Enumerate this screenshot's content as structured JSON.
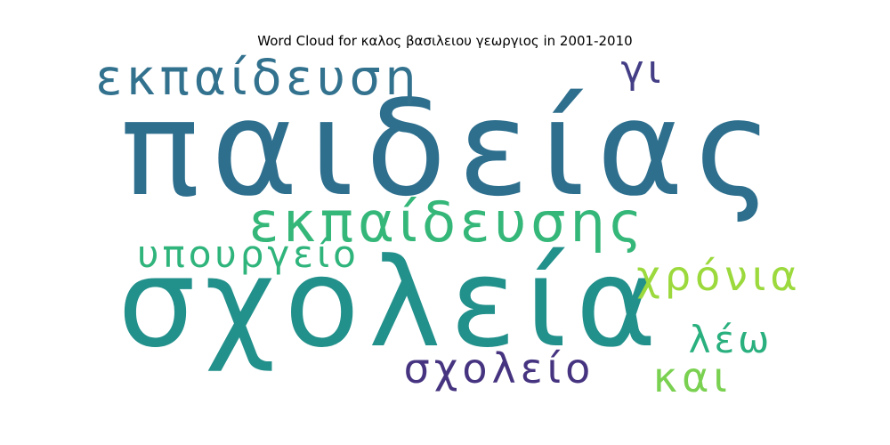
{
  "chart_data": {
    "type": "wordcloud",
    "title": "Word Cloud for καλος βασιλειου γεωργιος in 2001-2010",
    "words": [
      {
        "text": "παιδείας",
        "weight": 1.0,
        "color": "#2e6f8e"
      },
      {
        "text": "σχολεία",
        "weight": 0.93,
        "color": "#22908b"
      },
      {
        "text": "εκπαίδευσης",
        "weight": 0.42,
        "color": "#35b779"
      },
      {
        "text": "εκπαίδευση",
        "weight": 0.39,
        "color": "#33728e"
      },
      {
        "text": "υπουργείο",
        "weight": 0.3,
        "color": "#2fb47c"
      },
      {
        "text": "χρόνια",
        "weight": 0.33,
        "color": "#9bd93c"
      },
      {
        "text": "σχολείο",
        "weight": 0.34,
        "color": "#463480"
      },
      {
        "text": "λέω",
        "weight": 0.3,
        "color": "#2ab07f"
      },
      {
        "text": "και",
        "weight": 0.33,
        "color": "#7ad151"
      },
      {
        "text": "γι",
        "weight": 0.31,
        "color": "#433e85"
      }
    ]
  }
}
